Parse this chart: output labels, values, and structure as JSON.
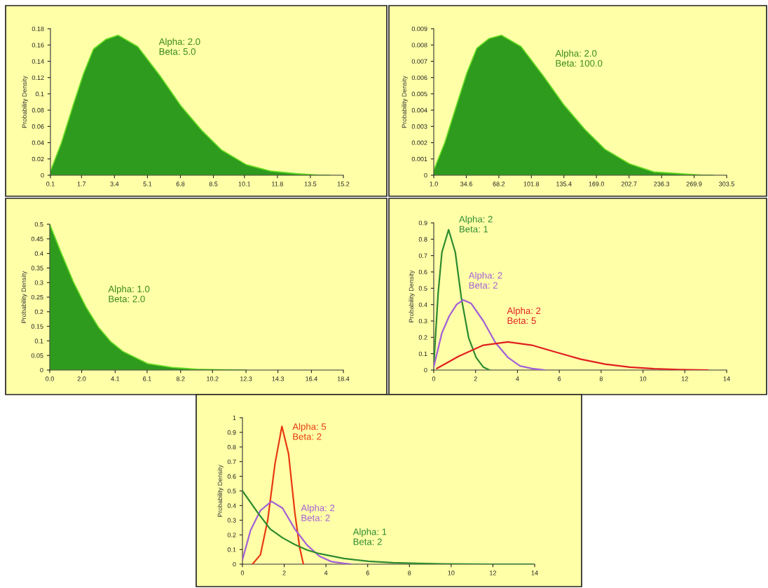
{
  "chart_data": [
    {
      "type": "area",
      "ylabel": "Probability Density",
      "series": [
        {
          "name": "Alpha: 2.0\nBeta: 5.0",
          "color": "#2e9a1e",
          "x": [
            0.1,
            0.67,
            1.3,
            1.81,
            2.32,
            2.96,
            3.59,
            4.6,
            5.75,
            6.83,
            7.9,
            8.92,
            10.19,
            11.46,
            12.73,
            14.0,
            14.5
          ],
          "values": [
            0.005,
            0.04,
            0.088,
            0.125,
            0.155,
            0.167,
            0.172,
            0.158,
            0.122,
            0.085,
            0.055,
            0.031,
            0.013,
            0.005,
            0.002,
            0,
            0
          ]
        }
      ],
      "xlim": [
        0.1,
        15.2
      ],
      "xticks": [
        0.1,
        1.7,
        3.4,
        5.1,
        6.8,
        8.5,
        10.1,
        11.8,
        13.5,
        15.2
      ],
      "ylim": [
        0,
        0.18
      ],
      "yticks": [
        0,
        0.02,
        0.04,
        0.06,
        0.08,
        0.1,
        0.12,
        0.14,
        0.16,
        0.18
      ]
    },
    {
      "type": "area",
      "ylabel": "Probability Density",
      "series": [
        {
          "name": "Alpha: 2.0\nBeta: 100.0",
          "color": "#2e9a1e",
          "x": [
            1.0,
            12.4,
            25.1,
            35.3,
            45.5,
            58.2,
            70.9,
            91.2,
            114.1,
            135.7,
            157.3,
            177.7,
            203.1,
            228.5,
            253.9,
            279.4,
            289.5
          ],
          "values": [
            0.0003,
            0.002,
            0.0044,
            0.0063,
            0.0078,
            0.0084,
            0.0086,
            0.0079,
            0.0061,
            0.0043,
            0.0028,
            0.0016,
            0.0007,
            0.0002,
            0.0001,
            0,
            0
          ]
        }
      ],
      "xlim": [
        1.0,
        303.5
      ],
      "xticks": [
        {
          "value": 1.0,
          "label": "1.0"
        },
        34.6,
        68.2,
        101.8,
        135.4,
        {
          "value": 169.0,
          "label": "169.0"
        },
        202.7,
        236.3,
        269.9,
        303.5
      ],
      "ylim": [
        0,
        0.009
      ],
      "yticks": [
        0,
        0.001,
        0.002,
        0.003,
        0.004,
        0.005,
        0.006,
        0.007,
        0.008,
        0.009
      ]
    },
    {
      "type": "area",
      "ylabel": "Probability Density",
      "series": [
        {
          "name": "Alpha: 1.0\nBeta: 2.0",
          "color": "#2e9a1e",
          "x": [
            0,
            0.73,
            1.5,
            2.27,
            3.04,
            3.81,
            4.58,
            6.13,
            7.67,
            9.2,
            10.76,
            12.3
          ],
          "values": [
            0.5,
            0.4,
            0.3,
            0.216,
            0.148,
            0.098,
            0.064,
            0.022,
            0.009,
            0.003,
            0.001,
            0
          ]
        }
      ],
      "xlim": [
        0,
        18.4
      ],
      "xticks": [
        {
          "value": 0,
          "label": "0.0"
        },
        {
          "value": 2.0,
          "label": "2.0"
        },
        4.1,
        6.1,
        8.2,
        10.2,
        12.3,
        14.3,
        16.4,
        18.4
      ],
      "ylim": [
        0,
        0.5
      ],
      "yticks": [
        0,
        0.05,
        0.1,
        0.15,
        0.2,
        0.25,
        0.3,
        0.35,
        0.4,
        0.45,
        0.5
      ]
    },
    {
      "type": "line",
      "ylabel": "Probability Density",
      "series": [
        {
          "name": "Alpha: 2\nBeta: 1",
          "color": "#2e8b2e",
          "x": [
            0,
            0.21,
            0.39,
            0.71,
            1.03,
            1.32,
            1.67,
            2.02,
            2.37,
            2.66
          ],
          "values": [
            0.03,
            0.47,
            0.72,
            0.858,
            0.72,
            0.44,
            0.197,
            0.078,
            0.018,
            0
          ]
        },
        {
          "name": "Alpha: 2\nBeta: 2",
          "color": "#a35fd6",
          "x": [
            0,
            0.39,
            0.74,
            1.09,
            1.41,
            1.79,
            2.37,
            2.95,
            3.54,
            4.12,
            4.7,
            5.29
          ],
          "values": [
            0.02,
            0.227,
            0.33,
            0.4,
            0.429,
            0.407,
            0.3,
            0.167,
            0.078,
            0.025,
            0.009,
            0
          ]
        },
        {
          "name": "Alpha: 2\nBeta: 5",
          "color": "#e02020",
          "x": [
            0.15,
            1.2,
            2.37,
            3.54,
            4.7,
            5.87,
            7.04,
            8.2,
            9.37,
            10.54,
            11.7,
            13.1
          ],
          "values": [
            0.01,
            0.085,
            0.152,
            0.172,
            0.152,
            0.108,
            0.066,
            0.036,
            0.018,
            0.008,
            0.003,
            0
          ]
        }
      ],
      "xlim": [
        0,
        14
      ],
      "xticks": [
        0,
        2,
        4,
        6,
        8,
        10,
        12,
        14
      ],
      "ylim": [
        0,
        0.9
      ],
      "yticks": [
        0,
        0.1,
        0.2,
        0.3,
        0.4,
        0.5,
        0.6,
        0.7,
        0.8,
        0.9
      ]
    },
    {
      "type": "line",
      "ylabel": "Probability Density",
      "series": [
        {
          "name": "Alpha: 5\nBeta: 2",
          "color": "#e83a10",
          "x": [
            0.48,
            0.86,
            1.21,
            1.56,
            1.89,
            2.21,
            2.51,
            2.74,
            2.92
          ],
          "values": [
            0,
            0.064,
            0.3,
            0.686,
            0.941,
            0.753,
            0.35,
            0.114,
            0
          ]
        },
        {
          "name": "Alpha: 2\nBeta: 2",
          "color": "#a35fd6",
          "x": [
            0,
            0.39,
            0.86,
            1.39,
            1.92,
            2.51,
            3.09,
            3.68,
            4.27,
            4.86,
            5.2
          ],
          "values": [
            0.03,
            0.232,
            0.366,
            0.429,
            0.383,
            0.24,
            0.131,
            0.055,
            0.017,
            0.005,
            0
          ]
        },
        {
          "name": "Alpha: 1\nBeta: 2",
          "color": "#2e8b2e",
          "x": [
            0,
            0.74,
            1.33,
            1.92,
            2.51,
            3.09,
            3.68,
            4.86,
            6.04,
            7.21,
            8.39,
            9.56,
            10.7,
            11.9,
            13.9
          ],
          "values": [
            0.5,
            0.35,
            0.24,
            0.18,
            0.134,
            0.097,
            0.072,
            0.039,
            0.02,
            0.01,
            0.005,
            0.002,
            0.001,
            0,
            0
          ]
        }
      ],
      "xlim": [
        0,
        14
      ],
      "xticks": [
        0,
        2,
        4,
        6,
        8,
        10,
        12,
        14
      ],
      "ylim": [
        0,
        1
      ],
      "yticks": [
        0,
        0.1,
        0.2,
        0.3,
        0.4,
        0.5,
        0.6,
        0.7,
        0.8,
        0.9,
        1
      ]
    }
  ]
}
